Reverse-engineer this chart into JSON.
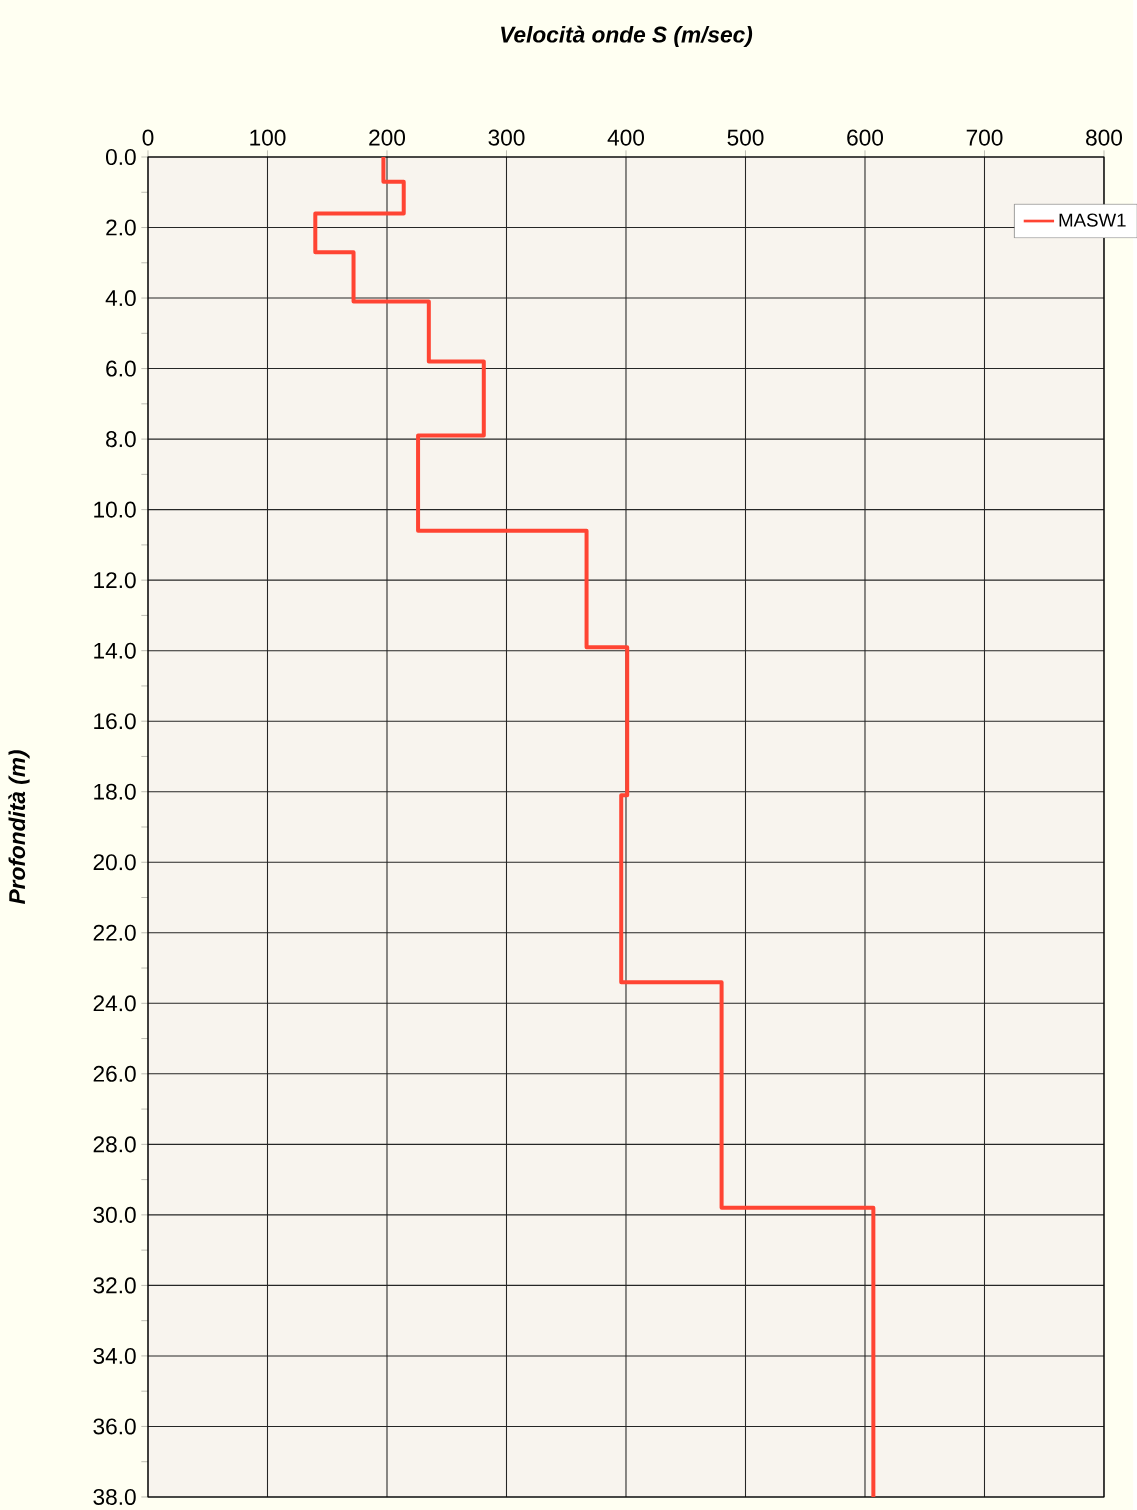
{
  "chart_data": {
    "type": "line",
    "xlabel": "Velocità onde S (m/sec)",
    "ylabel": "Profondità (m)",
    "xlim": [
      0,
      800
    ],
    "xticks": [
      0,
      100,
      200,
      300,
      400,
      500,
      600,
      700,
      800
    ],
    "ylim": [
      38,
      0
    ],
    "yticks": [
      {
        "value": 0,
        "label": "0.0"
      },
      {
        "value": 2,
        "label": "2.0"
      },
      {
        "value": 4,
        "label": "4.0"
      },
      {
        "value": 6,
        "label": "6.0"
      },
      {
        "value": 8,
        "label": "8.0"
      },
      {
        "value": 10,
        "label": "10.0"
      },
      {
        "value": 12,
        "label": "12.0"
      },
      {
        "value": 14,
        "label": "14.0"
      },
      {
        "value": 16,
        "label": "16.0"
      },
      {
        "value": 18,
        "label": "18.0"
      },
      {
        "value": 20,
        "label": "20.0"
      },
      {
        "value": 22,
        "label": "22.0"
      },
      {
        "value": 24,
        "label": "24.0"
      },
      {
        "value": 26,
        "label": "26.0"
      },
      {
        "value": 28,
        "label": "28.0"
      },
      {
        "value": 30,
        "label": "30.0"
      },
      {
        "value": 32,
        "label": "32.0"
      },
      {
        "value": 34,
        "label": "34.0"
      },
      {
        "value": 36,
        "label": "36.0"
      },
      {
        "value": 38,
        "label": "38.0"
      }
    ],
    "grid": true,
    "legend": "top right",
    "series": [
      {
        "name": "MASW1",
        "color": "#ff4433",
        "x": [
          197,
          197,
          214,
          214,
          140,
          140,
          172,
          172,
          235,
          235,
          281,
          281,
          226,
          226,
          367,
          367,
          401,
          401,
          396,
          396,
          480,
          480,
          607,
          607
        ],
        "values": [
          0,
          0.7,
          0.7,
          1.6,
          1.6,
          2.7,
          2.7,
          4.1,
          4.1,
          5.8,
          5.8,
          7.9,
          7.9,
          10.6,
          10.6,
          13.9,
          13.9,
          18.1,
          18.1,
          23.4,
          23.4,
          29.8,
          29.8,
          38
        ]
      }
    ]
  }
}
